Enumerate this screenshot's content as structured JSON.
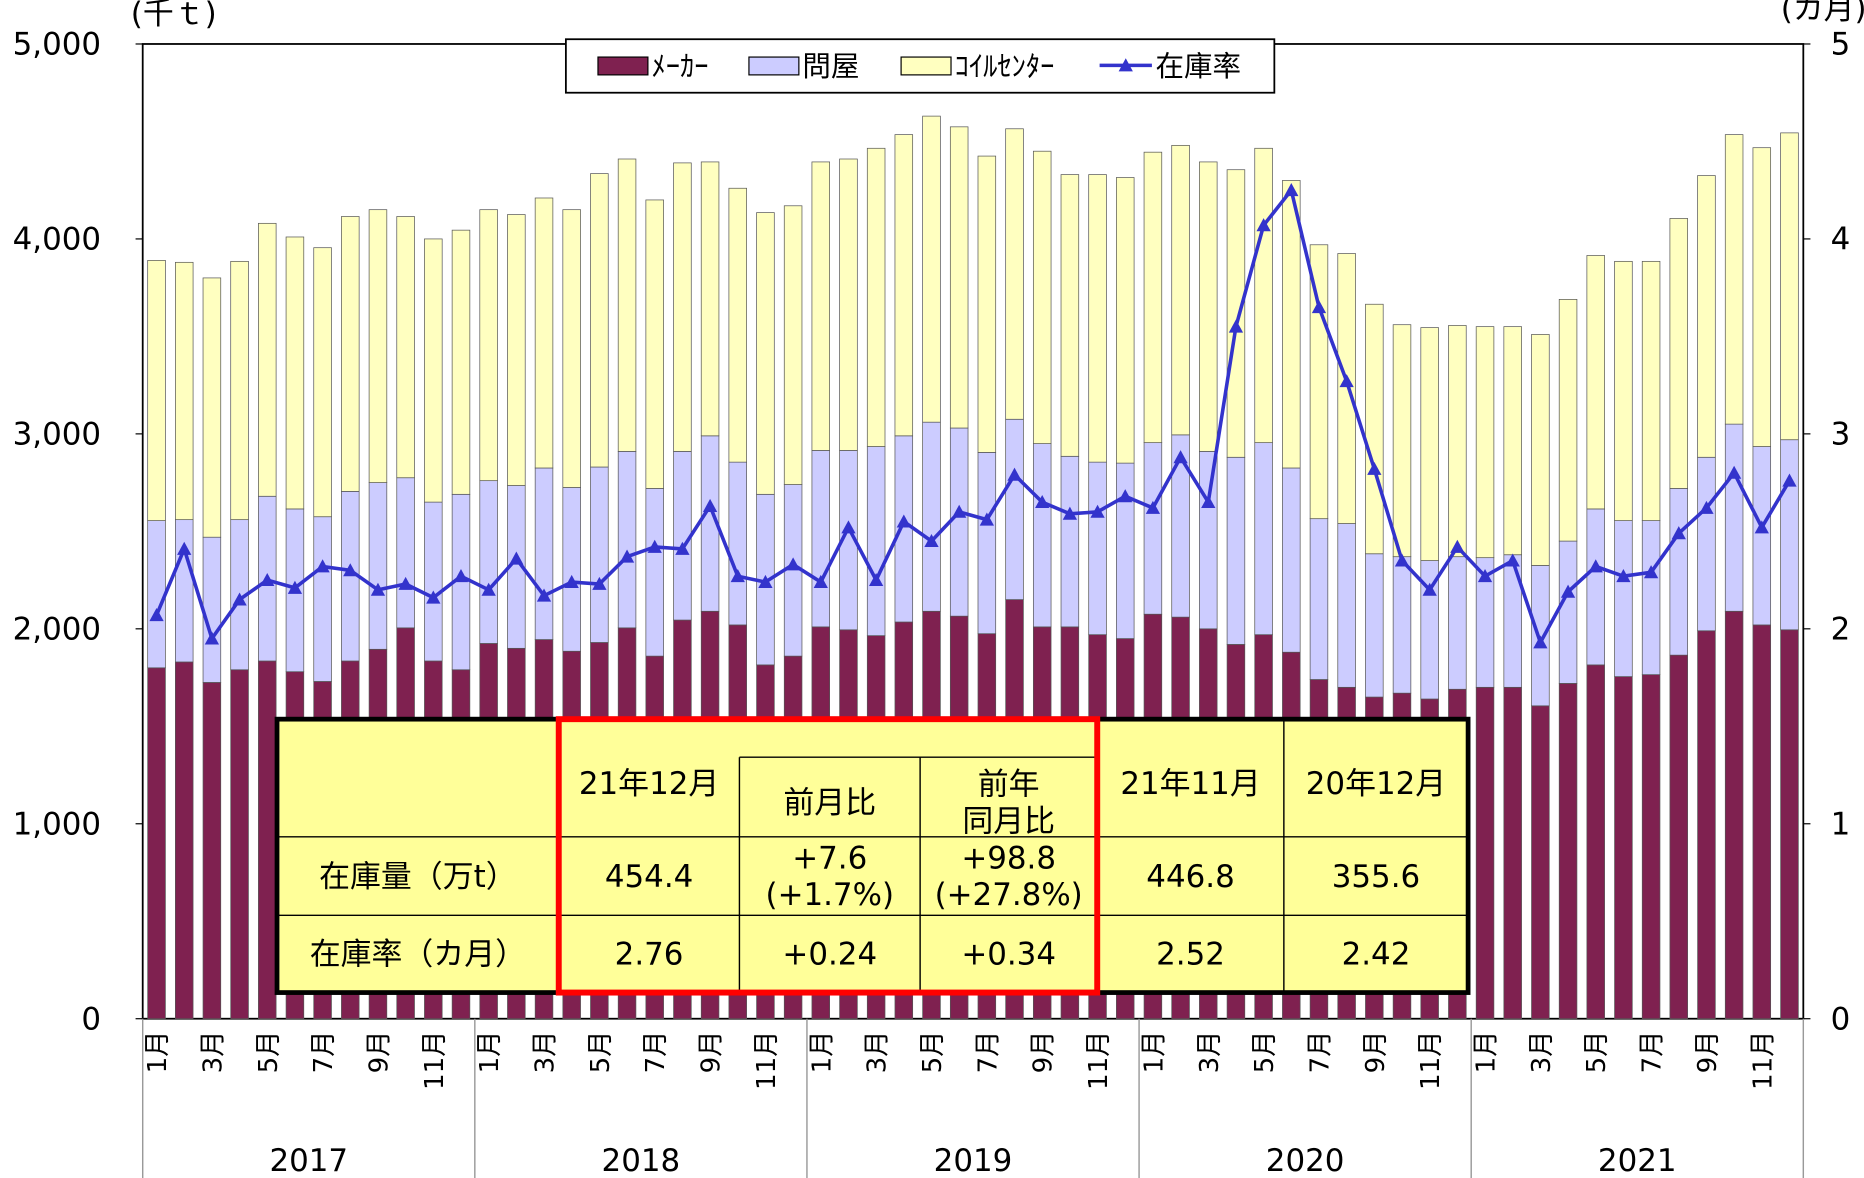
{
  "chart_data": {
    "type": "bar-line",
    "y_unit": "(千ｔ)",
    "y2_unit": "(カ月)",
    "categories": [
      "1月",
      null,
      "3月",
      null,
      "5月",
      null,
      "7月",
      null,
      "9月",
      null,
      "11月",
      null,
      "1月",
      null,
      "3月",
      null,
      "5月",
      null,
      "7月",
      null,
      "9月",
      null,
      "11月",
      null,
      "1月",
      null,
      "3月",
      null,
      "5月",
      null,
      "7月",
      null,
      "9月",
      null,
      "11月",
      null,
      "1月",
      null,
      "3月",
      null,
      "5月",
      null,
      "7月",
      null,
      "9月",
      null,
      "11月",
      null,
      "1月",
      null,
      "3月",
      null,
      "5月",
      null,
      "7月",
      null,
      "9月",
      null,
      "11月",
      null
    ],
    "years": [
      "2017",
      "2018",
      "2019",
      "2020",
      "2021"
    ],
    "ylim": [
      0,
      5000
    ],
    "yticks": [
      0,
      {
        "value": 1000,
        "label": "1,000"
      },
      {
        "value": 2000,
        "label": "2,000"
      },
      {
        "value": 3000,
        "label": "3,000"
      },
      {
        "value": 4000,
        "label": "4,000"
      },
      {
        "value": 5000,
        "label": "5,000"
      }
    ],
    "y2lim": [
      0,
      5
    ],
    "y2ticks": [
      0,
      1,
      2,
      3,
      4,
      5
    ],
    "grid": false,
    "legend": "top",
    "series": [
      {
        "name": "ﾒｰｶｰ",
        "color": "#7f2150",
        "stack": true,
        "values": [
          1800,
          1830,
          1725,
          1790,
          1835,
          1780,
          1730,
          1835,
          1895,
          2005,
          1835,
          1790,
          1925,
          1900,
          1945,
          1885,
          1930,
          2005,
          1860,
          2045,
          2090,
          2020,
          1815,
          1860,
          2010,
          1995,
          1965,
          2035,
          2090,
          2065,
          1975,
          2150,
          2010,
          2010,
          1970,
          1950,
          2075,
          2060,
          2000,
          1920,
          1970,
          1880,
          1740,
          1700,
          1650,
          1670,
          1640,
          1690,
          1700,
          1700,
          1605,
          1720,
          1815,
          1755,
          1765,
          1865,
          1990,
          2090,
          2020,
          1995
        ]
      },
      {
        "name": "問屋",
        "color": "#ccccff",
        "stack": true,
        "values": [
          755,
          730,
          745,
          770,
          845,
          835,
          845,
          870,
          855,
          770,
          815,
          900,
          835,
          835,
          880,
          840,
          900,
          905,
          860,
          865,
          900,
          835,
          875,
          880,
          905,
          920,
          970,
          955,
          970,
          965,
          930,
          925,
          940,
          875,
          885,
          900,
          880,
          935,
          910,
          960,
          985,
          945,
          825,
          840,
          735,
          700,
          710,
          680,
          665,
          680,
          720,
          730,
          800,
          800,
          790,
          855,
          890,
          960,
          915,
          975
        ]
      },
      {
        "name": "ｺｲﾙｾﾝﾀｰ",
        "color": "#ffffc0",
        "stack": true,
        "values": [
          1335,
          1320,
          1330,
          1325,
          1400,
          1395,
          1380,
          1410,
          1400,
          1340,
          1350,
          1355,
          1390,
          1390,
          1385,
          1425,
          1505,
          1500,
          1480,
          1480,
          1405,
          1405,
          1445,
          1430,
          1480,
          1495,
          1530,
          1545,
          1570,
          1545,
          1520,
          1490,
          1500,
          1445,
          1475,
          1465,
          1490,
          1485,
          1485,
          1475,
          1510,
          1475,
          1405,
          1385,
          1280,
          1190,
          1195,
          1186,
          1185,
          1170,
          1185,
          1240,
          1300,
          1330,
          1330,
          1385,
          1445,
          1485,
          1533,
          1574
        ]
      },
      {
        "name": "在庫率",
        "color": "#3333cc",
        "axis": "y2",
        "values": [
          2.07,
          2.41,
          1.95,
          2.15,
          2.25,
          2.21,
          2.32,
          2.3,
          2.2,
          2.23,
          2.16,
          2.27,
          2.2,
          2.36,
          2.17,
          2.24,
          2.23,
          2.37,
          2.42,
          2.41,
          2.63,
          2.27,
          2.24,
          2.33,
          2.24,
          2.52,
          2.25,
          2.55,
          2.45,
          2.6,
          2.56,
          2.79,
          2.65,
          2.59,
          2.6,
          2.68,
          2.62,
          2.88,
          2.65,
          3.55,
          4.07,
          4.25,
          3.65,
          3.27,
          2.82,
          2.35,
          2.2,
          2.42,
          2.27,
          2.35,
          1.93,
          2.19,
          2.32,
          2.27,
          2.29,
          2.49,
          2.62,
          2.8,
          2.52,
          2.76
        ]
      }
    ]
  },
  "table": {
    "columns": [
      "21年12月",
      "前月比",
      "前年\n同月比",
      "21年11月",
      "20年12月"
    ],
    "rows": [
      {
        "label": "在庫量（万t）",
        "cells": [
          "454.4",
          "+7.6\n(+1.7%)",
          "+98.8\n(+27.8%)",
          "446.8",
          "355.6"
        ]
      },
      {
        "label": "在庫率（カ月）",
        "cells": [
          "2.76",
          "+0.24",
          "+0.34",
          "2.52",
          "2.42"
        ]
      }
    ]
  }
}
